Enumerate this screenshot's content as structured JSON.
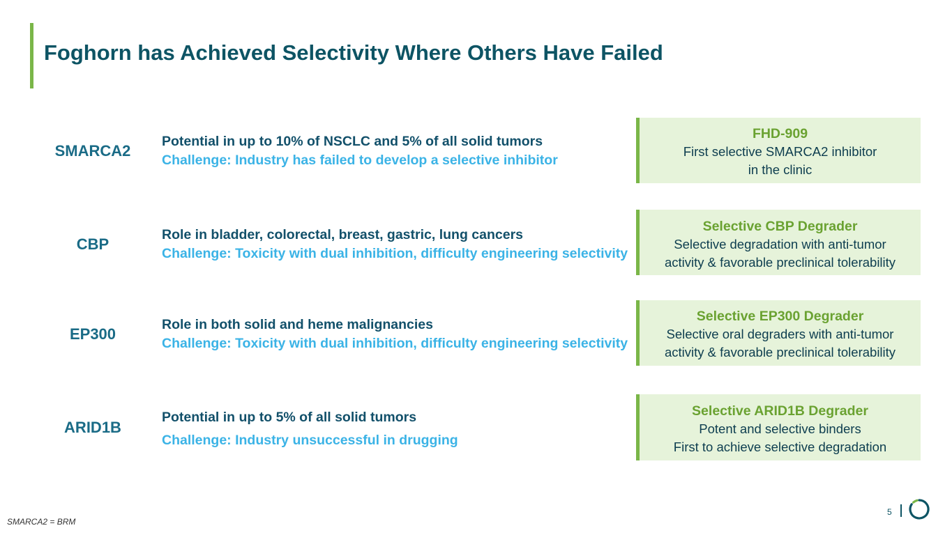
{
  "title": "Foghorn has Achieved Selectivity Where Others Have Failed",
  "rows": [
    {
      "target": "SMARCA2",
      "potential": "Potential in up to 10% of NSCLC and 5% of all solid tumors",
      "challenge": "Challenge: Industry has failed to develop a selective inhibitor",
      "box_title": "FHD-909",
      "box_lines": [
        "First selective SMARCA2 inhibitor",
        "in the clinic"
      ]
    },
    {
      "target": "CBP",
      "potential": "Role in bladder, colorectal, breast, gastric, lung cancers",
      "challenge": "Challenge: Toxicity with dual inhibition, difficulty engineering selectivity",
      "box_title": "Selective CBP Degrader",
      "box_lines": [
        "Selective degradation with anti-tumor",
        "activity & favorable preclinical tolerability"
      ]
    },
    {
      "target": "EP300",
      "potential": "Role in both solid and heme malignancies",
      "challenge": "Challenge: Toxicity with dual inhibition, difficulty engineering selectivity",
      "box_title": "Selective EP300 Degrader",
      "box_lines": [
        "Selective oral degraders with anti-tumor",
        "activity & favorable preclinical tolerability"
      ]
    },
    {
      "target": "ARID1B",
      "potential": "Potential in up to 5% of all solid tumors",
      "challenge": "Challenge: Industry unsuccessful in drugging",
      "box_title": "Selective ARID1B Degrader",
      "box_lines": [
        "Potent and selective binders",
        "First to achieve selective degradation"
      ]
    }
  ],
  "footnote": "SMARCA2 = BRM",
  "page_number": "5",
  "colors": {
    "accent_green": "#7ab648",
    "title_teal": "#0d5464",
    "challenge_blue": "#3bb3e6",
    "box_bg": "#e6f3da"
  },
  "logo_icon": "foghorn-ring-logo-icon"
}
